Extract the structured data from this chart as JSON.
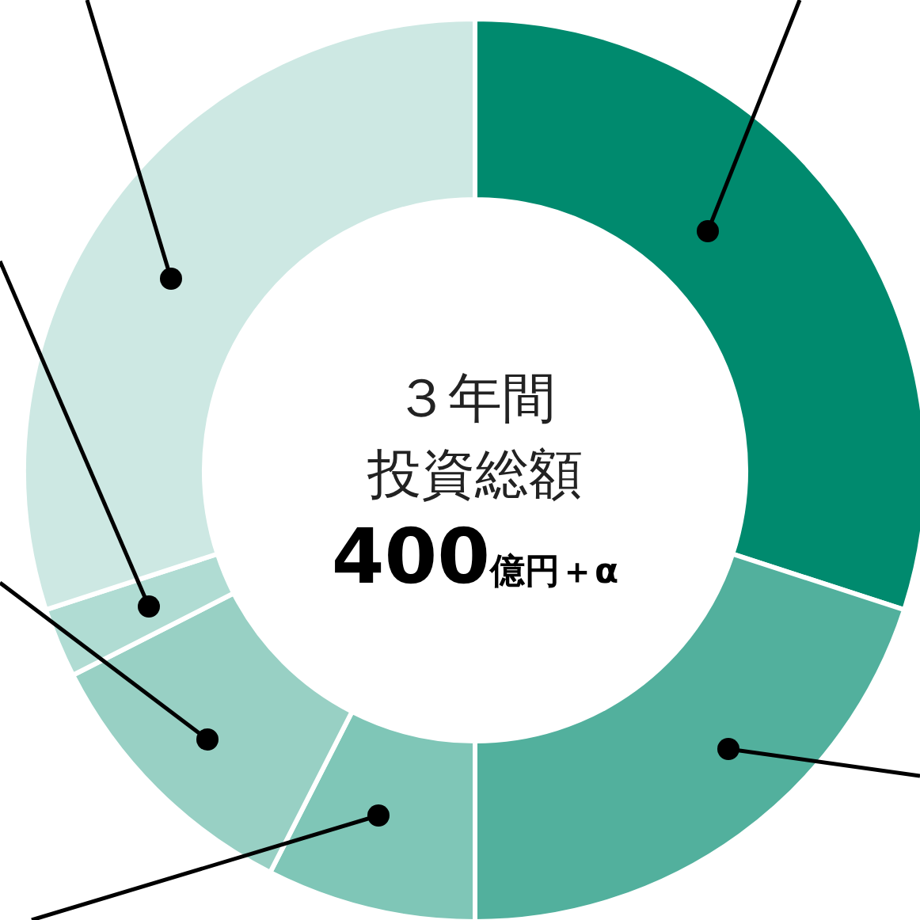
{
  "chart_data": {
    "type": "donut",
    "title": "３年間",
    "subtitle": "投資総額",
    "annotations": [
      "400億円＋α"
    ],
    "categories": [
      null,
      null,
      null,
      null,
      null,
      null
    ],
    "values": [
      30,
      20,
      7.5,
      10,
      2.5,
      30
    ],
    "colors": [
      "#008a6e",
      "#52b09d",
      "#7fc6b7",
      "#98d0c4",
      "#b0dcd3",
      "#cde8e3"
    ]
  }
}
